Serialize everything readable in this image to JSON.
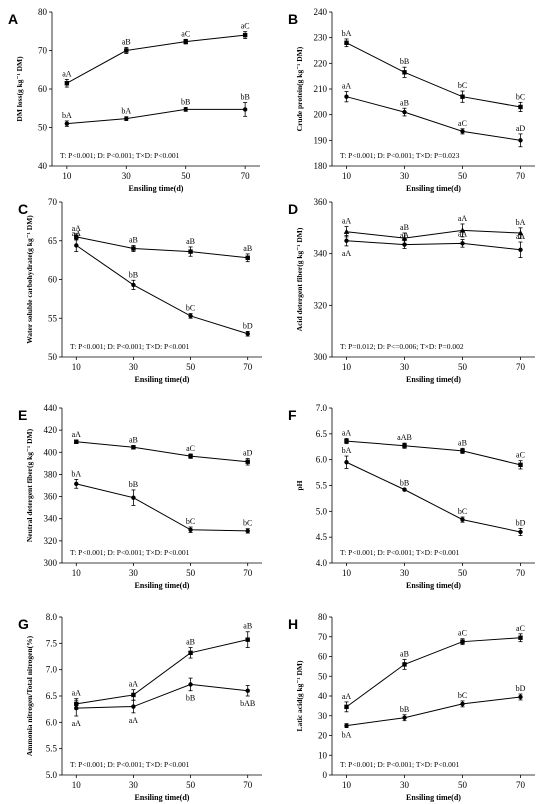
{
  "chart_data": [
    {
      "type": "line",
      "panel": "A",
      "ylabel": "DM loss(g kg⁻¹ DM)",
      "xlabel": "Ensiling time(d)",
      "x": [
        10,
        30,
        50,
        70
      ],
      "ylim": [
        40,
        80
      ],
      "yticks": [
        40,
        50,
        60,
        70,
        80
      ],
      "stat": "T: P<0.001; D: P<0.001; T×D: P<0.001",
      "series": [
        {
          "marker": "square",
          "values": [
            61.5,
            70.0,
            72.3,
            74.0
          ],
          "errors": [
            1.0,
            0.8,
            0.6,
            0.9
          ],
          "labels": [
            "aA",
            "aB",
            "aC",
            "aC"
          ],
          "label_side": "above"
        },
        {
          "marker": "circle",
          "values": [
            51.0,
            52.3,
            54.7,
            54.7
          ],
          "errors": [
            0.7,
            0.5,
            0.5,
            1.8
          ],
          "labels": [
            "bA",
            "bA",
            "bB",
            "bB"
          ],
          "label_side": "above"
        }
      ]
    },
    {
      "type": "line",
      "panel": "B",
      "ylabel": "Crude protein(g kg⁻¹ DM)",
      "xlabel": "Ensiling time(d)",
      "x": [
        10,
        30,
        50,
        70
      ],
      "ylim": [
        180,
        240
      ],
      "yticks": [
        180,
        190,
        200,
        210,
        220,
        230,
        240
      ],
      "stat": "T: P<0.001; D: P<0.001; T×D: P=0.023",
      "series": [
        {
          "marker": "square",
          "values": [
            228.0,
            216.5,
            207.0,
            203.0
          ],
          "errors": [
            1.5,
            2.0,
            2.2,
            1.8
          ],
          "labels": [
            "bA",
            "bB",
            "bC",
            "bC"
          ],
          "label_side": "above"
        },
        {
          "marker": "circle",
          "values": [
            207.0,
            201.0,
            193.5,
            190.0
          ],
          "errors": [
            2.0,
            1.5,
            1.0,
            2.5
          ],
          "labels": [
            "aA",
            "aB",
            "aC",
            "aD"
          ],
          "label_side": "above"
        }
      ]
    },
    {
      "type": "line",
      "panel": "C",
      "ylabel": "Water soluble carbohydrate(g kg⁻¹ DM)",
      "xlabel": "Ensiling time(d)",
      "x": [
        10,
        30,
        50,
        70
      ],
      "ylim": [
        50,
        70
      ],
      "yticks": [
        50,
        55,
        60,
        65,
        70
      ],
      "stat": "T: P<0.001; D: P<0.001; T×D: P<0.001",
      "series": [
        {
          "marker": "square",
          "values": [
            65.5,
            64.0,
            63.6,
            62.8
          ],
          "errors": [
            0.4,
            0.4,
            0.6,
            0.5
          ],
          "labels": [
            "aA",
            "aB",
            "aB",
            "aB"
          ],
          "label_side": "above"
        },
        {
          "marker": "circle",
          "values": [
            64.4,
            59.3,
            55.3,
            53.0
          ],
          "errors": [
            0.8,
            0.6,
            0.3,
            0.3
          ],
          "labels": [
            "aA",
            "bB",
            "bC",
            "bD"
          ],
          "label_side": "above"
        }
      ]
    },
    {
      "type": "line",
      "panel": "D",
      "ylabel": "Acid detergent fiber(g kg⁻¹ DM)",
      "xlabel": "Ensiling time(d)",
      "x": [
        10,
        30,
        50,
        70
      ],
      "ylim": [
        300,
        360
      ],
      "yticks": [
        300,
        320,
        340,
        360
      ],
      "stat": "T: P=0.012; D: P<=0.006; T×D: P=0.002",
      "series": [
        {
          "marker": "triangle",
          "values": [
            348.5,
            346.0,
            349.0,
            348.0
          ],
          "errors": [
            2.0,
            2.0,
            2.5,
            2.0
          ],
          "labels": [
            "aA",
            "aB",
            "aA",
            "bA"
          ],
          "label_side": "above"
        },
        {
          "marker": "circle",
          "values": [
            345.0,
            343.5,
            344.0,
            341.5
          ],
          "errors": [
            2.0,
            1.5,
            1.5,
            3.0
          ],
          "labels": [
            "aA",
            "aA",
            "aA",
            "aA"
          ],
          "label_side": "mixed"
        }
      ]
    },
    {
      "type": "line",
      "panel": "E",
      "ylabel": "Neutral detergent fiber(g kg⁻¹ DM)",
      "xlabel": "Ensiling time(d)",
      "x": [
        10,
        30,
        50,
        70
      ],
      "ylim": [
        300,
        440
      ],
      "yticks": [
        300,
        320,
        340,
        360,
        380,
        400,
        420,
        440
      ],
      "stat": "T: P<0.001; D: P<0.001; T×D: P<0.001",
      "series": [
        {
          "marker": "square",
          "values": [
            409.5,
            404.5,
            396.5,
            391.5
          ],
          "errors": [
            1.5,
            1.5,
            2.0,
            3.0
          ],
          "labels": [
            "aA",
            "aB",
            "aC",
            "aD"
          ],
          "label_side": "above"
        },
        {
          "marker": "circle",
          "values": [
            371.5,
            359.0,
            330.0,
            329.0
          ],
          "errors": [
            4.0,
            7.0,
            2.5,
            2.0
          ],
          "labels": [
            "bA",
            "bB",
            "bC",
            "bC"
          ],
          "label_side": "above"
        }
      ]
    },
    {
      "type": "line",
      "panel": "F",
      "ylabel": "pH",
      "xlabel": "Ensiling time(d)",
      "x": [
        10,
        30,
        50,
        70
      ],
      "ylim": [
        4.0,
        7.0
      ],
      "yticks": [
        4.0,
        4.5,
        5.0,
        5.5,
        6.0,
        6.5,
        7.0
      ],
      "stat": "T: P<0.001; D: P<0.001; T×D: P<0.001",
      "series": [
        {
          "marker": "square",
          "values": [
            6.36,
            6.27,
            6.17,
            5.9
          ],
          "errors": [
            0.05,
            0.05,
            0.05,
            0.08
          ],
          "labels": [
            "aA",
            "aAB",
            "aB",
            "aC"
          ],
          "label_side": "above"
        },
        {
          "marker": "circle",
          "values": [
            5.95,
            5.42,
            4.84,
            4.6
          ],
          "errors": [
            0.12,
            0.02,
            0.05,
            0.07
          ],
          "labels": [
            "bA",
            "bB",
            "bC",
            "bD"
          ],
          "label_side": "above"
        }
      ]
    },
    {
      "type": "line",
      "panel": "G",
      "ylabel": "Ammonia nitrogen/Total nitrogen(%)",
      "xlabel": "Ensiling time(d)",
      "x": [
        10,
        30,
        50,
        70
      ],
      "ylim": [
        5.0,
        8.0
      ],
      "yticks": [
        5.0,
        5.5,
        6.0,
        6.5,
        7.0,
        7.5,
        8.0
      ],
      "stat": "T: P<0.001; D: P<0.001; T×D: P<0.001",
      "series": [
        {
          "marker": "square",
          "values": [
            6.35,
            6.52,
            7.32,
            7.57
          ],
          "errors": [
            0.1,
            0.1,
            0.1,
            0.15
          ],
          "labels": [
            "aA",
            "aA",
            "aB",
            "aB"
          ],
          "label_side": "above"
        },
        {
          "marker": "circle",
          "values": [
            6.27,
            6.3,
            6.72,
            6.6
          ],
          "errors": [
            0.15,
            0.12,
            0.12,
            0.1
          ],
          "labels": [
            "aA",
            "aA",
            "bB",
            "bAB"
          ],
          "label_side": "below"
        }
      ]
    },
    {
      "type": "line",
      "panel": "H",
      "ylabel": "Latic acid(g kg⁻¹ DM)",
      "xlabel": "Ensiling time(d)",
      "x": [
        10,
        30,
        50,
        70
      ],
      "ylim": [
        0,
        80
      ],
      "yticks": [
        0,
        10,
        20,
        30,
        40,
        50,
        60,
        70,
        80
      ],
      "stat": "T: P<0.001; D: P<0.001; T×D: P<0.001",
      "series": [
        {
          "marker": "square",
          "values": [
            34.5,
            56.0,
            67.5,
            69.5
          ],
          "errors": [
            2.5,
            2.5,
            1.5,
            2.0
          ],
          "labels": [
            "aA",
            "aB",
            "aC",
            "aC"
          ],
          "label_side": "above"
        },
        {
          "marker": "circle",
          "values": [
            25.0,
            29.0,
            36.0,
            39.5
          ],
          "errors": [
            1.0,
            1.5,
            1.5,
            1.5
          ],
          "labels": [
            "bA",
            "bB",
            "bC",
            "bD"
          ],
          "label_side": "mixed"
        }
      ]
    }
  ]
}
